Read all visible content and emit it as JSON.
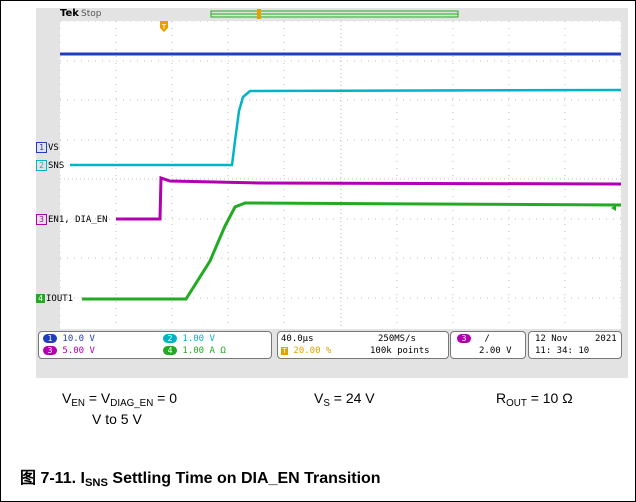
{
  "scope": {
    "brand": "Tek",
    "run_state": "Stop"
  },
  "channels": [
    {
      "id": "1",
      "label": "VS",
      "color": "#1f3fbf",
      "badge_bg": "#1f3fbf"
    },
    {
      "id": "2",
      "label": "SNS",
      "color": "#00b4c8",
      "badge_bg": "#00b4c8"
    },
    {
      "id": "3",
      "label": "EN1, DIA_EN",
      "color": "#b000b0",
      "badge_bg": "#b000b0"
    },
    {
      "id": "4",
      "label": "IOUT1",
      "color": "#22aa22",
      "badge_bg": "#22aa22"
    }
  ],
  "readout": {
    "ch1_scale": "10.0 V",
    "ch2_scale": "1.00 V",
    "ch3_scale": "5.00 V",
    "ch4_scale": "1.00 A",
    "ch4_unit_icon": "Ω",
    "timebase": "40.0µs",
    "trigger_pos": "20.00 %",
    "sample_rate": "250MS/s",
    "record_length": "100k points",
    "trigger_channel": "3",
    "trigger_slope": "/",
    "trigger_level": "2.00 V",
    "date": "12 Nov",
    "year": "2021",
    "time": "11: 34: 10"
  },
  "conditions": {
    "ven_text": "V",
    "ven_sub": "EN",
    "eq1": " = V",
    "vdiag_sub": "DIAG_EN",
    "eq1_tail": " = 0",
    "eq1_line2": "V to 5 V",
    "vs_text": "V",
    "vs_sub": "S",
    "vs_tail": " = 24 V",
    "rout_text": "R",
    "rout_sub": "OUT",
    "rout_tail": " = 10 Ω"
  },
  "figure": {
    "prefix": "图 7-11. I",
    "sub": "SNS",
    "suffix": " Settling Time on DIA_EN Transition"
  }
}
